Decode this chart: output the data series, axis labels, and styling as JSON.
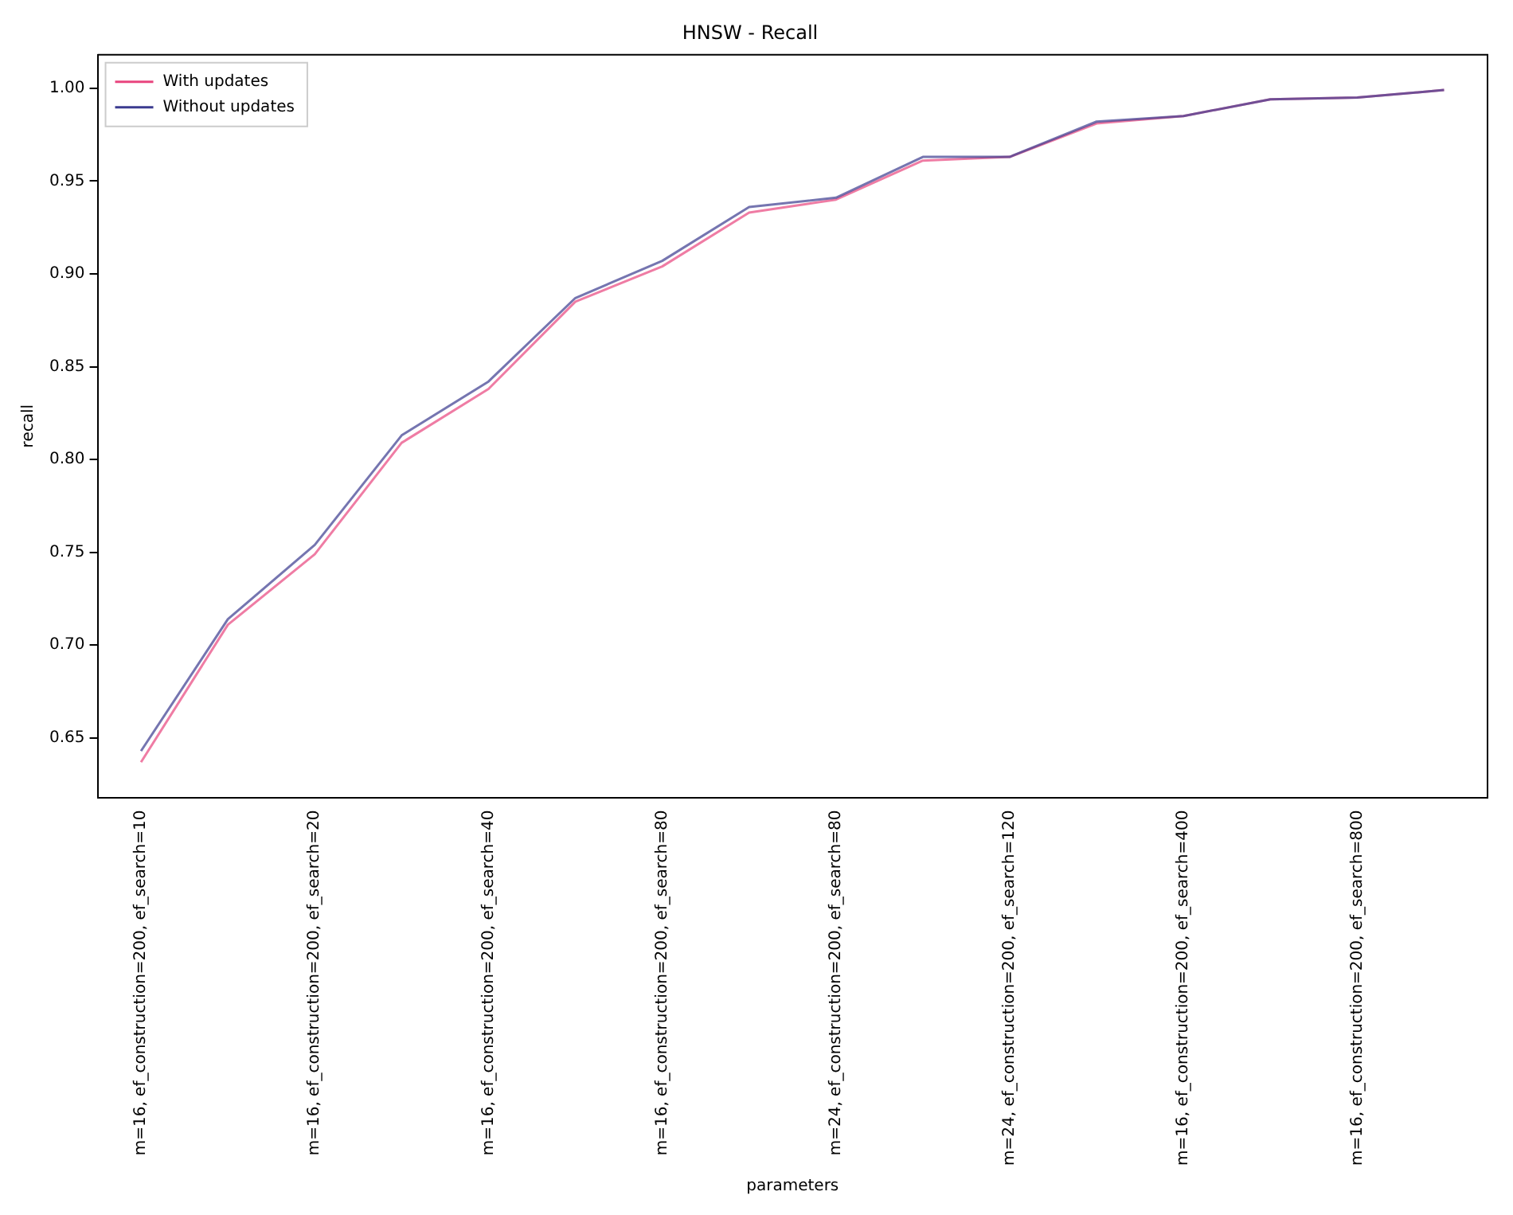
{
  "chart_data": {
    "type": "line",
    "title": "HNSW - Recall",
    "xlabel": "parameters",
    "ylabel": "recall",
    "categories": [
      "m=16, ef_construction=200, ef_search=10",
      null,
      "m=16, ef_construction=200, ef_search=20",
      null,
      "m=16, ef_construction=200, ef_search=40",
      null,
      "m=16, ef_construction=200, ef_search=80",
      null,
      "m=24, ef_construction=200, ef_search=80",
      null,
      "m=24, ef_construction=200, ef_search=120",
      null,
      "m=16, ef_construction=200, ef_search=400",
      null,
      "m=16, ef_construction=200, ef_search=800",
      null
    ],
    "series": [
      {
        "name": "With updates",
        "color": "#e8457e",
        "values": [
          0.637,
          0.711,
          0.749,
          0.809,
          0.838,
          0.885,
          0.904,
          0.933,
          0.94,
          0.961,
          0.963,
          0.981,
          0.985,
          0.994,
          0.995,
          0.999
        ]
      },
      {
        "name": "Without updates",
        "color": "#3b3b8f",
        "values": [
          0.643,
          0.714,
          0.754,
          0.813,
          0.842,
          0.887,
          0.907,
          0.936,
          0.941,
          0.963,
          0.963,
          0.982,
          0.985,
          0.994,
          0.995,
          0.999
        ]
      }
    ],
    "ylim": [
      0.618,
      1.018
    ],
    "yticks": [
      {
        "value": 0.65,
        "label": "0.65"
      },
      {
        "value": 0.7,
        "label": "0.70"
      },
      {
        "value": 0.75,
        "label": "0.75"
      },
      {
        "value": 0.8,
        "label": "0.80"
      },
      {
        "value": 0.85,
        "label": "0.85"
      },
      {
        "value": 0.9,
        "label": "0.90"
      },
      {
        "value": 0.95,
        "label": "0.95"
      },
      {
        "value": 1.0,
        "label": "1.00"
      }
    ],
    "grid": false,
    "legend": "top left",
    "marker": "none",
    "line_style": "solid"
  }
}
